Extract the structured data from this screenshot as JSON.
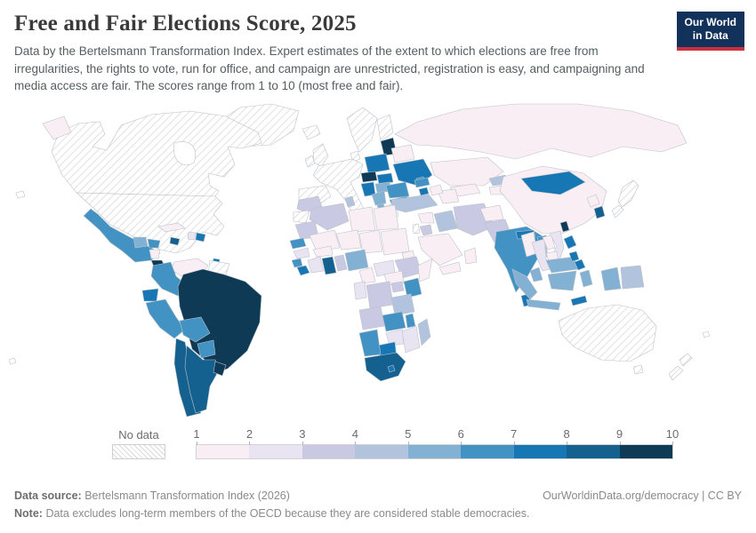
{
  "header": {
    "title": "Free and Fair Elections Score, 2025",
    "subtitle": "Data by the Bertelsmann Transformation Index. Expert estimates of the extent to which elections are free from irregularities, the rights to vote, run for office, and campaign are unrestricted, registration is easy, and campaigning and media access are fair. The scores range from 1 to 10 (most free and fair).",
    "logo_line1": "Our World",
    "logo_line2": "in Data",
    "logo_colors": {
      "background": "#13325b",
      "accent_bar": "#c9303e"
    }
  },
  "legend": {
    "no_data_label": "No data"
  },
  "footer": {
    "datasource_label": "Data source:",
    "datasource": "Bertelsmann Transformation Index (2026)",
    "link": "OurWorldinData.org/democracy | CC BY",
    "note_label": "Note:",
    "note": "Data excludes long-term members of the OECD because they are considered stable democracies."
  },
  "chart_data": {
    "type": "choropleth",
    "title": "Free and Fair Elections Score, 2025",
    "year": 2025,
    "scale": {
      "min": 1,
      "max": 10,
      "ticks": [
        "1",
        "2",
        "3",
        "4",
        "5",
        "6",
        "7",
        "8",
        "9",
        "10"
      ],
      "no_data_label": "No data",
      "bins": [
        {
          "range": "1-2",
          "color": "#f8eef4"
        },
        {
          "range": "2-3",
          "color": "#e9e4f1"
        },
        {
          "range": "3-4",
          "color": "#c9c9e3"
        },
        {
          "range": "4-5",
          "color": "#b2c3de"
        },
        {
          "range": "5-6",
          "color": "#82b1d3"
        },
        {
          "range": "6-7",
          "color": "#4292c3"
        },
        {
          "range": "7-8",
          "color": "#1677b4"
        },
        {
          "range": "8-9",
          "color": "#14608f"
        },
        {
          "range": "9-10",
          "color": "#0e3a55"
        }
      ]
    },
    "countries": [
      {
        "id": "united-states",
        "name": "United States",
        "bin": "no-data"
      },
      {
        "id": "canada",
        "name": "Canada",
        "bin": "no-data"
      },
      {
        "id": "greenland",
        "name": "Greenland",
        "bin": "no-data"
      },
      {
        "id": "mexico",
        "name": "Mexico",
        "bin": "6-7"
      },
      {
        "id": "guatemala",
        "name": "Guatemala",
        "bin": "5-6"
      },
      {
        "id": "honduras",
        "name": "Honduras",
        "bin": "6-7"
      },
      {
        "id": "nicaragua",
        "name": "Nicaragua",
        "bin": "1-2"
      },
      {
        "id": "costa-rica",
        "name": "Costa Rica",
        "bin": "9-10"
      },
      {
        "id": "panama",
        "name": "Panama",
        "bin": "8-9"
      },
      {
        "id": "cuba",
        "name": "Cuba",
        "bin": "1-2"
      },
      {
        "id": "jamaica",
        "name": "Jamaica",
        "bin": "8-9"
      },
      {
        "id": "haiti",
        "name": "Haiti",
        "bin": "2-3"
      },
      {
        "id": "dominican-republic",
        "name": "Dominican Republic",
        "bin": "7-8"
      },
      {
        "id": "trinidad-and-tobago",
        "name": "Trinidad and Tobago",
        "bin": "7-8"
      },
      {
        "id": "venezuela",
        "name": "Venezuela",
        "bin": "1-2"
      },
      {
        "id": "guyana-suriname",
        "name": "Guyana & Suriname",
        "bin": "no-data"
      },
      {
        "id": "colombia",
        "name": "Colombia",
        "bin": "6-7"
      },
      {
        "id": "ecuador",
        "name": "Ecuador",
        "bin": "7-8"
      },
      {
        "id": "peru",
        "name": "Peru",
        "bin": "6-7"
      },
      {
        "id": "brazil",
        "name": "Brazil",
        "bin": "9-10"
      },
      {
        "id": "bolivia",
        "name": "Bolivia",
        "bin": "6-7"
      },
      {
        "id": "paraguay",
        "name": "Paraguay",
        "bin": "6-7"
      },
      {
        "id": "chile",
        "name": "Chile",
        "bin": "8-9"
      },
      {
        "id": "argentina",
        "name": "Argentina",
        "bin": "8-9"
      },
      {
        "id": "uruguay",
        "name": "Uruguay",
        "bin": "9-10"
      },
      {
        "id": "iceland",
        "name": "Iceland",
        "bin": "no-data"
      },
      {
        "id": "united-kingdom",
        "name": "United Kingdom",
        "bin": "no-data"
      },
      {
        "id": "ireland",
        "name": "Ireland",
        "bin": "no-data"
      },
      {
        "id": "scandinavia",
        "name": "Norway & Sweden",
        "bin": "no-data"
      },
      {
        "id": "finland",
        "name": "Finland",
        "bin": "no-data"
      },
      {
        "id": "denmark",
        "name": "Denmark",
        "bin": "no-data"
      },
      {
        "id": "western-europe",
        "name": "France, Germany & Italy",
        "bin": "no-data"
      },
      {
        "id": "spain-portugal",
        "name": "Spain & Portugal",
        "bin": "no-data"
      },
      {
        "id": "greece",
        "name": "Greece",
        "bin": "no-data"
      },
      {
        "id": "baltics",
        "name": "Estonia, Latvia & Lithuania",
        "bin": "9-10"
      },
      {
        "id": "poland",
        "name": "Poland",
        "bin": "7-8"
      },
      {
        "id": "czechia",
        "name": "Czechia",
        "bin": "9-10"
      },
      {
        "id": "slovakia",
        "name": "Slovakia",
        "bin": "7-8"
      },
      {
        "id": "hungary",
        "name": "Hungary",
        "bin": "5-6"
      },
      {
        "id": "croatia",
        "name": "Croatia",
        "bin": "7-8"
      },
      {
        "id": "serbia",
        "name": "Serbia",
        "bin": "5-6"
      },
      {
        "id": "albania",
        "name": "Albania",
        "bin": "5-6"
      },
      {
        "id": "belarus",
        "name": "Belarus",
        "bin": "1-2"
      },
      {
        "id": "ukraine",
        "name": "Ukraine",
        "bin": "7-8"
      },
      {
        "id": "moldova",
        "name": "Moldova",
        "bin": "6-7"
      },
      {
        "id": "romania",
        "name": "Romania",
        "bin": "6-7"
      },
      {
        "id": "bulgaria",
        "name": "Bulgaria",
        "bin": "6-7"
      },
      {
        "id": "russia",
        "name": "Russia",
        "bin": "1-2"
      },
      {
        "id": "kazakhstan",
        "name": "Kazakhstan",
        "bin": "1-2"
      },
      {
        "id": "uzbekistan",
        "name": "Uzbekistan",
        "bin": "1-2"
      },
      {
        "id": "turkmenistan",
        "name": "Turkmenistan",
        "bin": "1-2"
      },
      {
        "id": "kyrgyzstan",
        "name": "Kyrgyzstan",
        "bin": "4-5"
      },
      {
        "id": "tajikistan",
        "name": "Tajikistan",
        "bin": "1-2"
      },
      {
        "id": "georgia",
        "name": "Georgia",
        "bin": "6-7"
      },
      {
        "id": "armenia",
        "name": "Armenia",
        "bin": "7-8"
      },
      {
        "id": "azerbaijan",
        "name": "Azerbaijan",
        "bin": "1-2"
      },
      {
        "id": "turkey",
        "name": "Turkey",
        "bin": "4-5"
      },
      {
        "id": "syria",
        "name": "Syria",
        "bin": "1-2"
      },
      {
        "id": "israel",
        "name": "Israel",
        "bin": "no-data"
      },
      {
        "id": "jordan",
        "name": "Jordan",
        "bin": "3-4"
      },
      {
        "id": "iraq",
        "name": "Iraq",
        "bin": "4-5"
      },
      {
        "id": "iran",
        "name": "Iran",
        "bin": "3-4"
      },
      {
        "id": "saudi-arabia",
        "name": "Saudi Arabia",
        "bin": "1-2"
      },
      {
        "id": "yemen",
        "name": "Yemen",
        "bin": "1-2"
      },
      {
        "id": "oman",
        "name": "Oman",
        "bin": "1-2"
      },
      {
        "id": "afghanistan",
        "name": "Afghanistan",
        "bin": "1-2"
      },
      {
        "id": "pakistan",
        "name": "Pakistan",
        "bin": "3-4"
      },
      {
        "id": "india",
        "name": "India",
        "bin": "6-7"
      },
      {
        "id": "nepal",
        "name": "Nepal",
        "bin": "7-8"
      },
      {
        "id": "bhutan",
        "name": "Bhutan",
        "bin": "6-7"
      },
      {
        "id": "bangladesh",
        "name": "Bangladesh",
        "bin": "4-5"
      },
      {
        "id": "sri-lanka",
        "name": "Sri Lanka",
        "bin": "7-8"
      },
      {
        "id": "china",
        "name": "China",
        "bin": "1-2"
      },
      {
        "id": "mongolia",
        "name": "Mongolia",
        "bin": "7-8"
      },
      {
        "id": "north-korea",
        "name": "North Korea",
        "bin": "1-2"
      },
      {
        "id": "south-korea",
        "name": "South Korea",
        "bin": "8-9"
      },
      {
        "id": "japan",
        "name": "Japan",
        "bin": "no-data"
      },
      {
        "id": "taiwan",
        "name": "Taiwan",
        "bin": "9-10"
      },
      {
        "id": "myanmar",
        "name": "Myanmar",
        "bin": "1-2"
      },
      {
        "id": "thailand",
        "name": "Thailand",
        "bin": "2-3"
      },
      {
        "id": "laos",
        "name": "Laos",
        "bin": "1-2"
      },
      {
        "id": "vietnam",
        "name": "Vietnam",
        "bin": "2-3"
      },
      {
        "id": "cambodia",
        "name": "Cambodia",
        "bin": "1-2"
      },
      {
        "id": "malaysia",
        "name": "Malaysia",
        "bin": "5-6"
      },
      {
        "id": "indonesia",
        "name": "Indonesia",
        "bin": "5-6"
      },
      {
        "id": "philippines",
        "name": "Philippines",
        "bin": "7-8"
      },
      {
        "id": "papua-new-guinea",
        "name": "Papua New Guinea",
        "bin": "4-5"
      },
      {
        "id": "timor-leste",
        "name": "Timor-Leste",
        "bin": "7-8"
      },
      {
        "id": "australia",
        "name": "Australia",
        "bin": "no-data"
      },
      {
        "id": "new-zealand",
        "name": "New Zealand",
        "bin": "no-data"
      },
      {
        "id": "morocco",
        "name": "Morocco",
        "bin": "3-4"
      },
      {
        "id": "western-sahara",
        "name": "Western Sahara",
        "bin": "no-data"
      },
      {
        "id": "algeria",
        "name": "Algeria",
        "bin": "3-4"
      },
      {
        "id": "tunisia",
        "name": "Tunisia",
        "bin": "4-5"
      },
      {
        "id": "libya",
        "name": "Libya",
        "bin": "1-2"
      },
      {
        "id": "egypt",
        "name": "Egypt",
        "bin": "1-2"
      },
      {
        "id": "mauritania",
        "name": "Mauritania",
        "bin": "3-4"
      },
      {
        "id": "mali",
        "name": "Mali",
        "bin": "1-2"
      },
      {
        "id": "niger",
        "name": "Niger",
        "bin": "1-2"
      },
      {
        "id": "chad",
        "name": "Chad",
        "bin": "1-2"
      },
      {
        "id": "sudan",
        "name": "Sudan",
        "bin": "1-2"
      },
      {
        "id": "eritrea",
        "name": "Eritrea",
        "bin": "1-2"
      },
      {
        "id": "ethiopia",
        "name": "Ethiopia",
        "bin": "3-4"
      },
      {
        "id": "somalia",
        "name": "Somalia",
        "bin": "1-2"
      },
      {
        "id": "senegal",
        "name": "Senegal",
        "bin": "6-7"
      },
      {
        "id": "guinea",
        "name": "Guinea",
        "bin": "2-3"
      },
      {
        "id": "sierra-leone",
        "name": "Sierra Leone",
        "bin": "6-7"
      },
      {
        "id": "liberia",
        "name": "Liberia",
        "bin": "7-8"
      },
      {
        "id": "cote-divoire",
        "name": "Cote d'Ivoire",
        "bin": "2-3"
      },
      {
        "id": "ghana",
        "name": "Ghana",
        "bin": "8-9"
      },
      {
        "id": "burkina-faso",
        "name": "Burkina Faso",
        "bin": "1-2"
      },
      {
        "id": "benin",
        "name": "Benin",
        "bin": "3-4"
      },
      {
        "id": "nigeria",
        "name": "Nigeria",
        "bin": "5-6"
      },
      {
        "id": "cameroon",
        "name": "Cameroon",
        "bin": "1-2"
      },
      {
        "id": "central-african-republic",
        "name": "Central African Republic",
        "bin": "2-3"
      },
      {
        "id": "south-sudan",
        "name": "South Sudan",
        "bin": "1-2"
      },
      {
        "id": "congo",
        "name": "Congo",
        "bin": "2-3"
      },
      {
        "id": "dr-congo",
        "name": "Democratic Republic of Congo",
        "bin": "3-4"
      },
      {
        "id": "uganda",
        "name": "Uganda",
        "bin": "3-4"
      },
      {
        "id": "kenya",
        "name": "Kenya",
        "bin": "6-7"
      },
      {
        "id": "tanzania",
        "name": "Tanzania",
        "bin": "4-5"
      },
      {
        "id": "angola",
        "name": "Angola",
        "bin": "3-4"
      },
      {
        "id": "zambia",
        "name": "Zambia",
        "bin": "6-7"
      },
      {
        "id": "malawi",
        "name": "Malawi",
        "bin": "6-7"
      },
      {
        "id": "mozambique",
        "name": "Mozambique",
        "bin": "2-3"
      },
      {
        "id": "zimbabwe",
        "name": "Zimbabwe",
        "bin": "2-3"
      },
      {
        "id": "botswana",
        "name": "Botswana",
        "bin": "7-8"
      },
      {
        "id": "namibia",
        "name": "Namibia",
        "bin": "6-7"
      },
      {
        "id": "south-africa",
        "name": "South Africa",
        "bin": "8-9"
      },
      {
        "id": "lesotho",
        "name": "Lesotho",
        "bin": "7-8"
      },
      {
        "id": "madagascar",
        "name": "Madagascar",
        "bin": "4-5"
      }
    ]
  }
}
